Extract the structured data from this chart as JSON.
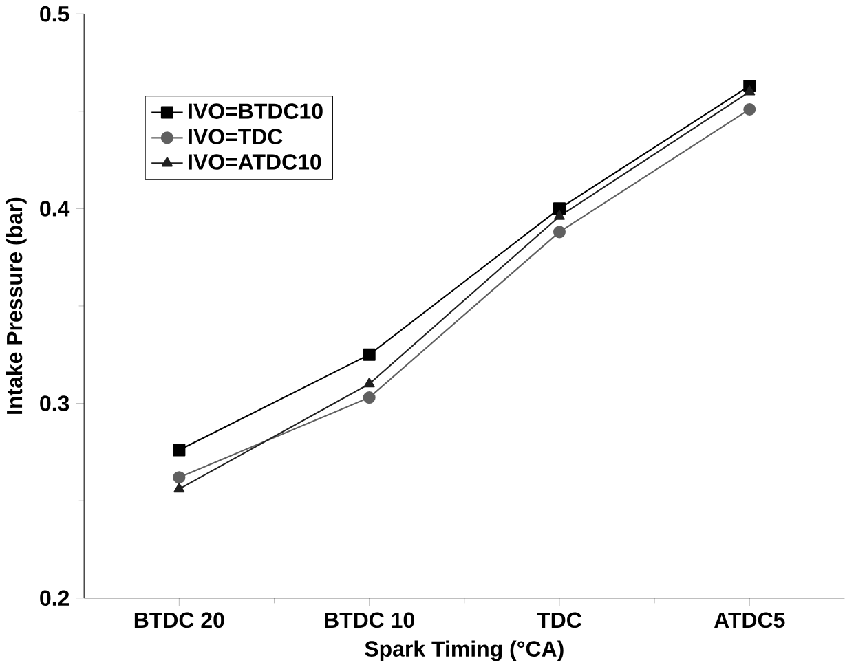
{
  "chart_data": {
    "type": "line",
    "xlabel": "Spark Timing (°CA)",
    "ylabel": "Intake Pressure (bar)",
    "categories": [
      "BTDC 20",
      "BTDC 10",
      "TDC",
      "ATDC5"
    ],
    "series": [
      {
        "name": "IVO=BTDC10",
        "color": "#000000",
        "marker": "square",
        "values": [
          0.276,
          0.325,
          0.4,
          0.463
        ]
      },
      {
        "name": "IVO=TDC",
        "color": "#606060",
        "marker": "circle",
        "values": [
          0.262,
          0.303,
          0.388,
          0.451
        ]
      },
      {
        "name": "IVO=ATDC10",
        "color": "#202020",
        "marker": "triangle",
        "values": [
          0.256,
          0.31,
          0.396,
          0.46
        ]
      }
    ],
    "ylim": [
      0.2,
      0.5
    ],
    "yticks": [
      0.2,
      0.3,
      0.4,
      0.5
    ],
    "legend": "top left",
    "grid": false,
    "line_style": "solid"
  }
}
